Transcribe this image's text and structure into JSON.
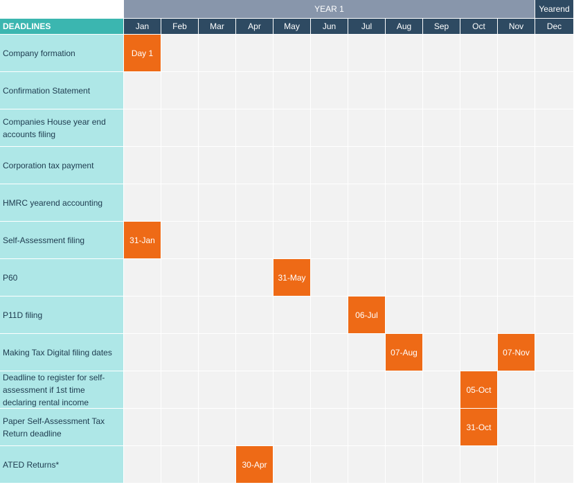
{
  "header": {
    "year_label": "YEAR 1",
    "yearend_label": "Yearend",
    "deadlines_label": "DEADLINES"
  },
  "months": [
    "Jan",
    "Feb",
    "Mar",
    "Apr",
    "May",
    "Jun",
    "Jul",
    "Aug",
    "Sep",
    "Oct",
    "Nov",
    "Dec"
  ],
  "rows": [
    {
      "label": "Company formation",
      "markers": [
        {
          "month": "Jan",
          "text": "Day 1"
        }
      ]
    },
    {
      "label": "Confirmation Statement",
      "markers": []
    },
    {
      "label": "Companies House year end accounts filing",
      "markers": []
    },
    {
      "label": "Corporation tax payment",
      "markers": []
    },
    {
      "label": "HMRC yearend accounting",
      "markers": []
    },
    {
      "label": "Self-Assessment filing",
      "markers": [
        {
          "month": "Jan",
          "text": "31-Jan"
        }
      ]
    },
    {
      "label": "P60",
      "markers": [
        {
          "month": "May",
          "text": "31-May"
        }
      ]
    },
    {
      "label": "P11D filing",
      "markers": [
        {
          "month": "Jul",
          "text": "06-Jul"
        }
      ]
    },
    {
      "label": "Making Tax Digital filing dates",
      "markers": [
        {
          "month": "Aug",
          "text": "07-Aug"
        },
        {
          "month": "Nov",
          "text": "07-Nov"
        }
      ]
    },
    {
      "label": "Deadline to register for self-assessment if 1st time declaring rental income",
      "markers": [
        {
          "month": "Oct",
          "text": "05-Oct"
        }
      ]
    },
    {
      "label": "Paper Self-Assessment Tax Return deadline",
      "markers": [
        {
          "month": "Oct",
          "text": "31-Oct"
        }
      ]
    },
    {
      "label": "ATED Returns*",
      "markers": [
        {
          "month": "Apr",
          "text": "30-Apr"
        }
      ]
    }
  ],
  "colors": {
    "year_band": "#8896ab",
    "month_header": "#2e4a62",
    "deadlines_header": "#3bb6b0",
    "row_label_bg": "#aee7e7",
    "marker": "#ee6a16",
    "empty_cell": "#f2f2f2"
  }
}
